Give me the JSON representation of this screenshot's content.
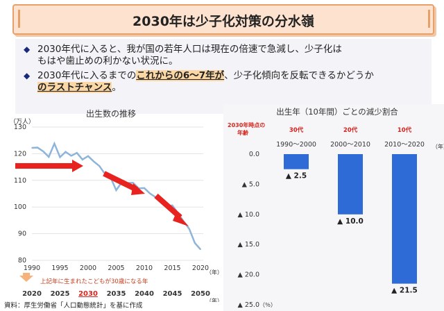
{
  "title": "2030年は少子化対策の分水嶺",
  "bullets": [
    {
      "l1a": "2030年代に入ると、我が国の若年人口は現在の倍速で急減し、少子化は",
      "l2a": "もはや歯止めの利かない状況に。"
    },
    {
      "l1a": "2030年代に入るまでの",
      "l1b": "これからの6～7年が",
      "l1c": "、少子化傾向を反転できるかどうか",
      "l2a": "のラストチャンス",
      "l2b": "。"
    }
  ],
  "source": "資料：厚生労働省「人口動態統計」を基に作成",
  "colors": {
    "line": "#8eb4d9",
    "arrow": "#e8231f",
    "bar": "#2e6bd6",
    "highlight": "#fbd7a5",
    "accent_red": "#d9241d"
  },
  "chart_data": [
    {
      "type": "line",
      "title": "出生数の推移",
      "ylabel": "（万人）",
      "xlabel": "（年）",
      "ylim": [
        80,
        130
      ],
      "yticks": [
        80,
        90,
        100,
        110,
        120,
        130
      ],
      "xlim": [
        1990,
        2020
      ],
      "xticks": [
        1990,
        1995,
        2000,
        2005,
        2010,
        2015,
        2020
      ],
      "x2_ticks": [
        2020,
        2025,
        2030,
        2035,
        2040,
        2045,
        2050
      ],
      "x2_highlight": "2030",
      "x2_note": "上記年に生まれたこどもが30歳になる年",
      "x": [
        1990,
        1991,
        1992,
        1993,
        1994,
        1995,
        1996,
        1997,
        1998,
        1999,
        2000,
        2001,
        2002,
        2003,
        2004,
        2005,
        2006,
        2007,
        2008,
        2009,
        2010,
        2011,
        2012,
        2013,
        2014,
        2015,
        2016,
        2017,
        2018,
        2019,
        2020
      ],
      "values": [
        122.2,
        122.3,
        120.9,
        118.8,
        123.8,
        118.7,
        120.7,
        119.2,
        120.3,
        117.8,
        119.1,
        117.1,
        115.4,
        112.4,
        111.1,
        106.3,
        109.3,
        109.0,
        109.1,
        107.0,
        107.1,
        105.1,
        103.7,
        103.0,
        100.4,
        100.6,
        97.7,
        94.6,
        91.8,
        86.5,
        84.1
      ]
    },
    {
      "type": "bar",
      "title": "出生年（10年間）ごとの減少割合",
      "row_label": "2030年時点の年齢",
      "ylabel": "（％）",
      "xlabel": "（年）",
      "ylim": [
        0,
        25
      ],
      "yticks": [
        "0.0",
        "▲ 5.0",
        "▲ 10.0",
        "▲ 15.0",
        "▲ 20.0",
        "▲ 25.0"
      ],
      "categories": [
        "1990～2000",
        "2000～2010",
        "2010～2020"
      ],
      "ages": [
        "30代",
        "20代",
        "10代"
      ],
      "values": [
        2.5,
        10.0,
        21.5
      ],
      "value_labels": [
        "▲ 2.5",
        "▲ 10.0",
        "▲ 21.5"
      ]
    }
  ]
}
